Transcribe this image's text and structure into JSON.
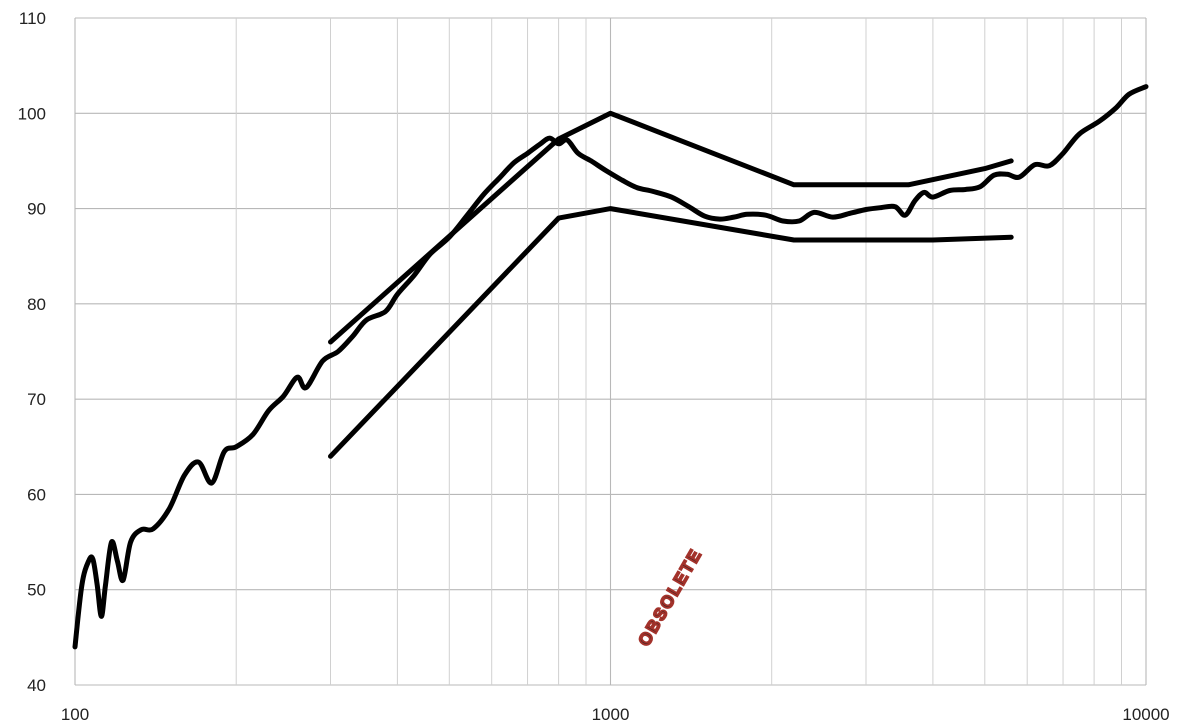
{
  "chart_data": {
    "type": "line",
    "title": "",
    "xlabel": "",
    "ylabel": "",
    "x_scale": "log",
    "xlim": [
      100,
      10000
    ],
    "ylim": [
      40,
      110
    ],
    "grid": true,
    "legend": "none",
    "x_ticks": [
      100,
      1000,
      10000
    ],
    "x_tick_labels": [
      "100",
      "1000",
      "10000"
    ],
    "y_ticks": [
      40,
      50,
      60,
      70,
      80,
      90,
      100,
      110
    ],
    "y_tick_labels": [
      "40",
      "50",
      "60",
      "70",
      "80",
      "90",
      "100",
      "110"
    ],
    "series": [
      {
        "color": "#000000",
        "points": [
          [
            100,
            44
          ],
          [
            103,
            50.5
          ],
          [
            106,
            53
          ],
          [
            108,
            53.2
          ],
          [
            110,
            50.5
          ],
          [
            112,
            47.2
          ],
          [
            114,
            50.5
          ],
          [
            117,
            55
          ],
          [
            120,
            53
          ],
          [
            123,
            51
          ],
          [
            127,
            55
          ],
          [
            133,
            56.3
          ],
          [
            140,
            56.4
          ],
          [
            150,
            58.5
          ],
          [
            160,
            62
          ],
          [
            170,
            63.4
          ],
          [
            180,
            61.2
          ],
          [
            190,
            64.5
          ],
          [
            200,
            65
          ],
          [
            215,
            66.3
          ],
          [
            230,
            68.8
          ],
          [
            245,
            70.3
          ],
          [
            260,
            72.3
          ],
          [
            270,
            71.2
          ],
          [
            290,
            74
          ],
          [
            310,
            75
          ],
          [
            330,
            76.6
          ],
          [
            350,
            78.3
          ],
          [
            380,
            79.2
          ],
          [
            400,
            81
          ],
          [
            430,
            83
          ],
          [
            460,
            85.2
          ],
          [
            500,
            87
          ],
          [
            540,
            89.3
          ],
          [
            580,
            91.5
          ],
          [
            620,
            93.2
          ],
          [
            660,
            94.8
          ],
          [
            700,
            95.8
          ],
          [
            740,
            96.8
          ],
          [
            770,
            97.4
          ],
          [
            800,
            96.8
          ],
          [
            830,
            97.2
          ],
          [
            870,
            95.8
          ],
          [
            920,
            95
          ],
          [
            980,
            94
          ],
          [
            1050,
            93
          ],
          [
            1120,
            92.2
          ],
          [
            1200,
            91.8
          ],
          [
            1300,
            91.2
          ],
          [
            1400,
            90.2
          ],
          [
            1500,
            89.2
          ],
          [
            1600,
            88.9
          ],
          [
            1700,
            89.1
          ],
          [
            1800,
            89.4
          ],
          [
            1950,
            89.3
          ],
          [
            2100,
            88.7
          ],
          [
            2250,
            88.7
          ],
          [
            2400,
            89.6
          ],
          [
            2600,
            89.1
          ],
          [
            2800,
            89.5
          ],
          [
            3000,
            89.9
          ],
          [
            3200,
            90.1
          ],
          [
            3400,
            90.2
          ],
          [
            3550,
            89.3
          ],
          [
            3700,
            90.8
          ],
          [
            3850,
            91.7
          ],
          [
            4000,
            91.2
          ],
          [
            4300,
            91.9
          ],
          [
            4600,
            92
          ],
          [
            4900,
            92.3
          ],
          [
            5200,
            93.5
          ],
          [
            5500,
            93.6
          ],
          [
            5800,
            93.3
          ],
          [
            6200,
            94.6
          ],
          [
            6600,
            94.5
          ],
          [
            7000,
            95.8
          ],
          [
            7500,
            97.8
          ],
          [
            8200,
            99.2
          ],
          [
            8800,
            100.6
          ],
          [
            9300,
            102
          ],
          [
            10000,
            102.8
          ]
        ]
      },
      {
        "color": "#000000",
        "points": [
          [
            300,
            76
          ],
          [
            800,
            97.3
          ],
          [
            1000,
            100
          ],
          [
            2200,
            92.5
          ],
          [
            3600,
            92.5
          ],
          [
            5000,
            94.2
          ],
          [
            5600,
            95
          ]
        ]
      },
      {
        "color": "#000000",
        "points": [
          [
            300,
            64
          ],
          [
            800,
            89
          ],
          [
            1000,
            90
          ],
          [
            2200,
            86.7
          ],
          [
            4000,
            86.7
          ],
          [
            5600,
            87
          ]
        ]
      }
    ]
  },
  "watermark": {
    "text": "OBSOLETE",
    "color": "#a3322b"
  }
}
